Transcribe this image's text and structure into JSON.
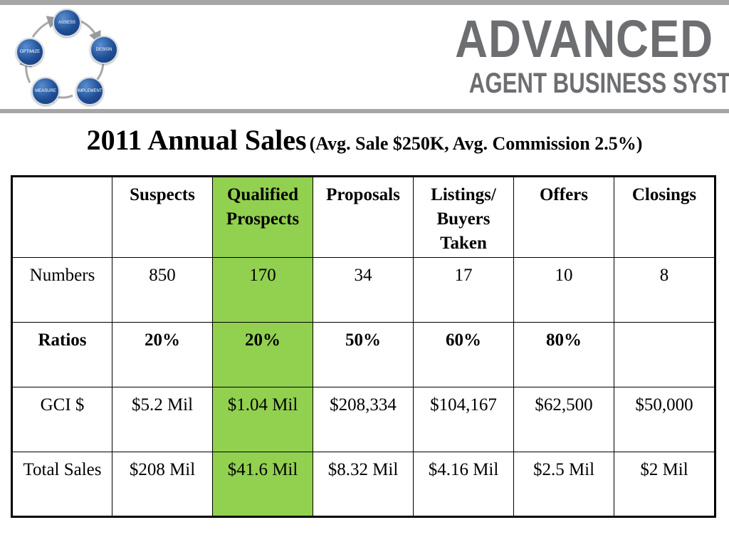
{
  "logo": {
    "cycle_steps": [
      "ASSESS",
      "DESIGN",
      "IMPLEMENT",
      "MEASURE",
      "OPTIMIZE"
    ],
    "brand_line1": "ADVANCED",
    "brand_line2": "AGENT BUSINESS SYSTEM",
    "brand_color": "#6d6e71",
    "node_color": "#1f4f96"
  },
  "title": {
    "main": "2011 Annual Sales",
    "sub": "(Avg. Sale $250K,  Avg. Commission 2.5%)"
  },
  "table": {
    "highlight_color": "#92d050",
    "highlight_column": "Qualified Prospects",
    "headers": [
      "",
      "Suspects",
      "Qualified Prospects",
      "Proposals",
      "Listings/ Buyers Taken",
      "Offers",
      "Closings"
    ],
    "rows": [
      {
        "label": "Numbers",
        "cells": [
          "850",
          "170",
          "34",
          "17",
          "10",
          "8"
        ]
      },
      {
        "label": "Ratios",
        "cells": [
          "20%",
          "20%",
          "50%",
          "60%",
          "80%",
          ""
        ]
      },
      {
        "label": "GCI $",
        "cells": [
          "$5.2 Mil",
          "$1.04 Mil",
          "$208,334",
          "$104,167",
          "$62,500",
          "$50,000"
        ]
      },
      {
        "label": "Total Sales",
        "cells": [
          "$208 Mil",
          "$41.6 Mil",
          "$8.32 Mil",
          "$4.16 Mil",
          "$2.5 Mil",
          "$2 Mil"
        ]
      }
    ]
  }
}
